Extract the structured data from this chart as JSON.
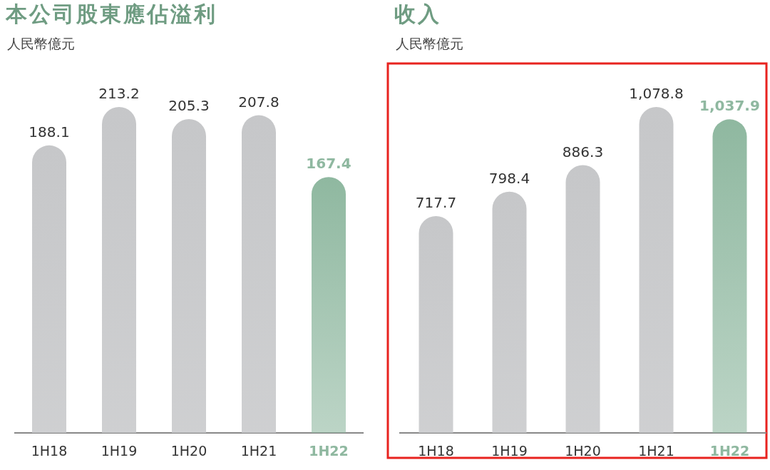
{
  "chart_data": [
    {
      "type": "bar",
      "title": "本公司股東應佔溢利",
      "subtitle": "人民幣億元",
      "categories": [
        "1H18",
        "1H19",
        "1H20",
        "1H21",
        "1H22"
      ],
      "values": [
        188.1,
        213.2,
        205.3,
        207.8,
        167.4
      ],
      "colors": [
        "#c6c7c9",
        "#c6c7c9",
        "#c6c7c9",
        "#c6c7c9",
        "#8fb8a0"
      ],
      "data_labels": true
    },
    {
      "type": "bar",
      "title": "收入",
      "subtitle": "人民幣億元",
      "categories": [
        "1H18",
        "1H19",
        "1H20",
        "1H21",
        "1H22"
      ],
      "values": [
        717.7,
        798.4,
        886.3,
        1078.8,
        1037.9
      ],
      "value_labels": [
        "717.7",
        "798.4",
        "886.3",
        "1,078.8",
        "1,037.9"
      ],
      "colors": [
        "#c6c7c9",
        "#c6c7c9",
        "#c6c7c9",
        "#c6c7c9",
        "#8fb8a0"
      ]
    }
  ]
}
